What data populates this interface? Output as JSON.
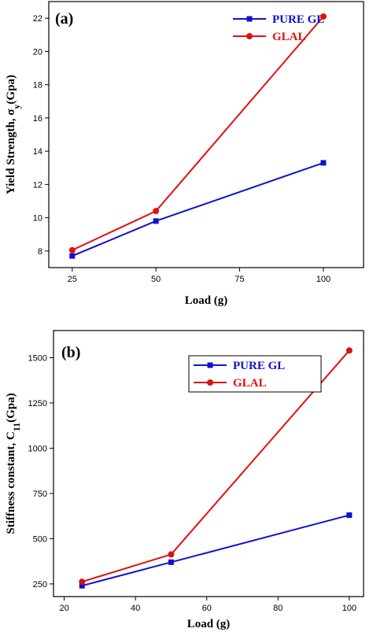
{
  "chart_data": [
    {
      "type": "line",
      "panel": "(a)",
      "x": [
        25,
        50,
        100
      ],
      "series": [
        {
          "name": "PURE GL",
          "values": [
            7.7,
            9.8,
            13.3
          ],
          "color": "#1010d0",
          "marker": "square"
        },
        {
          "name": "GLAL",
          "values": [
            8.05,
            10.4,
            22.1
          ],
          "color": "#e01010",
          "marker": "circle"
        }
      ],
      "xlabel": "Load (g)",
      "ylabel": "Yield Strength, σ",
      "ylabel_sub": "y",
      "ylabel_tail": "(Gpa)",
      "xlim": [
        18,
        112
      ],
      "ylim": [
        7,
        23
      ],
      "xticks": [
        25,
        50,
        75,
        100
      ],
      "yticks": [
        8,
        10,
        12,
        14,
        16,
        18,
        20,
        22
      ],
      "grid": false,
      "legend": "top-right"
    },
    {
      "type": "line",
      "panel": "(b)",
      "x": [
        25,
        50,
        100
      ],
      "series": [
        {
          "name": "PURE GL",
          "values": [
            240,
            370,
            630
          ],
          "color": "#1010d0",
          "marker": "square"
        },
        {
          "name": "GLAL",
          "values": [
            262,
            413,
            1540
          ],
          "color": "#e01010",
          "marker": "circle"
        }
      ],
      "xlabel": "Load (g)",
      "ylabel": "Stiffness constant, C",
      "ylabel_sub": "11",
      "ylabel_tail": "(Gpa)",
      "xlim": [
        17,
        104
      ],
      "ylim": [
        180,
        1650
      ],
      "xticks": [
        20,
        40,
        60,
        80,
        100
      ],
      "yticks": [
        250,
        500,
        750,
        1000,
        1250,
        1500
      ],
      "grid": false,
      "legend": "top-center"
    }
  ]
}
